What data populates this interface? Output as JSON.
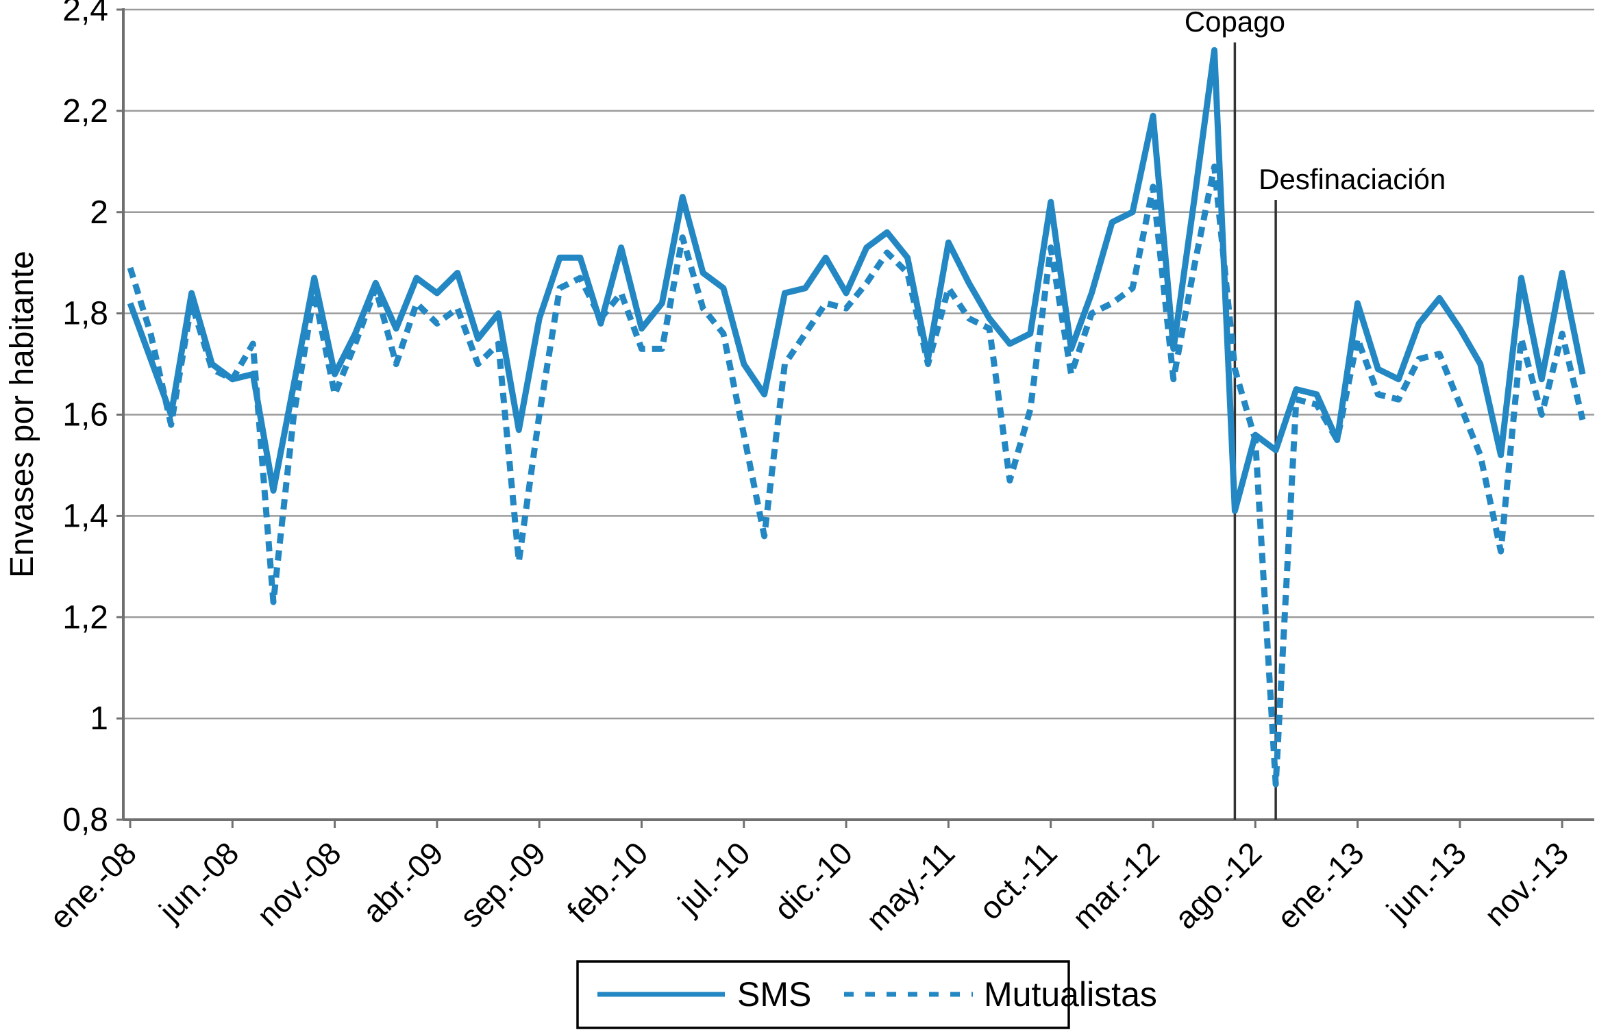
{
  "chart_data": {
    "type": "line",
    "title": "",
    "ylabel": "Envases por habitante",
    "xlabel": "",
    "x_start": "ene.-08",
    "x_end": "dic.-13",
    "x_frequency": "monthly",
    "n_points": 72,
    "ylim": [
      0.8,
      2.4
    ],
    "grid": "horizontal",
    "legend_position": "bottom-center",
    "yticks": [
      {
        "value": 0.8,
        "label": "0,8"
      },
      {
        "value": 1.0,
        "label": "1"
      },
      {
        "value": 1.2,
        "label": "1,2"
      },
      {
        "value": 1.4,
        "label": "1,4"
      },
      {
        "value": 1.6,
        "label": "1,6"
      },
      {
        "value": 1.8,
        "label": "1,8"
      },
      {
        "value": 2.0,
        "label": "2"
      },
      {
        "value": 2.2,
        "label": "2,2"
      },
      {
        "value": 2.4,
        "label": "2,4"
      }
    ],
    "xticks": [
      {
        "index": 0,
        "label": "ene.-08"
      },
      {
        "index": 5,
        "label": "jun.-08"
      },
      {
        "index": 10,
        "label": "nov.-08"
      },
      {
        "index": 15,
        "label": "abr.-09"
      },
      {
        "index": 20,
        "label": "sep.-09"
      },
      {
        "index": 25,
        "label": "feb.-10"
      },
      {
        "index": 30,
        "label": "jul.-10"
      },
      {
        "index": 35,
        "label": "dic.-10"
      },
      {
        "index": 40,
        "label": "may.-11"
      },
      {
        "index": 45,
        "label": "oct.-11"
      },
      {
        "index": 50,
        "label": "mar.-12"
      },
      {
        "index": 55,
        "label": "ago.-12"
      },
      {
        "index": 60,
        "label": "ene.-13"
      },
      {
        "index": 65,
        "label": "jun.-13"
      },
      {
        "index": 70,
        "label": "nov.-13"
      }
    ],
    "annotations": [
      {
        "label": "Copago",
        "index": 54,
        "line_top_y": 62,
        "label_x_offset": 0,
        "anchor": "middle"
      },
      {
        "label": "Desfinaciación",
        "index": 56,
        "line_top_y": 292,
        "label_x_offset": -25,
        "anchor": "start"
      }
    ],
    "series": [
      {
        "name": "SMS",
        "line_style": "solid",
        "values": [
          1.82,
          1.71,
          1.6,
          1.84,
          1.7,
          1.67,
          1.68,
          1.45,
          1.66,
          1.87,
          1.68,
          1.76,
          1.86,
          1.77,
          1.87,
          1.84,
          1.88,
          1.75,
          1.8,
          1.57,
          1.79,
          1.91,
          1.91,
          1.78,
          1.93,
          1.77,
          1.82,
          2.03,
          1.88,
          1.85,
          1.7,
          1.64,
          1.84,
          1.85,
          1.91,
          1.84,
          1.93,
          1.96,
          1.91,
          1.71,
          1.94,
          1.86,
          1.79,
          1.74,
          1.76,
          2.02,
          1.73,
          1.84,
          1.98,
          2.0,
          2.19,
          1.73,
          2.02,
          2.32,
          1.41,
          1.56,
          1.53,
          1.65,
          1.64,
          1.55,
          1.82,
          1.69,
          1.67,
          1.78,
          1.83,
          1.77,
          1.7,
          1.52,
          1.87,
          1.67,
          1.88,
          1.68
        ]
      },
      {
        "name": "Mutualistas",
        "line_style": "dashed",
        "values": [
          1.89,
          1.76,
          1.58,
          1.82,
          1.69,
          1.67,
          1.74,
          1.23,
          1.6,
          1.84,
          1.64,
          1.74,
          1.85,
          1.7,
          1.82,
          1.78,
          1.81,
          1.7,
          1.74,
          1.31,
          1.6,
          1.85,
          1.87,
          1.79,
          1.84,
          1.73,
          1.73,
          1.95,
          1.81,
          1.76,
          1.56,
          1.36,
          1.7,
          1.76,
          1.82,
          1.81,
          1.86,
          1.92,
          1.88,
          1.7,
          1.85,
          1.79,
          1.77,
          1.47,
          1.61,
          1.93,
          1.68,
          1.8,
          1.82,
          1.85,
          2.05,
          1.67,
          1.89,
          2.09,
          1.69,
          1.55,
          0.87,
          1.63,
          1.62,
          1.55,
          1.75,
          1.64,
          1.63,
          1.71,
          1.72,
          1.62,
          1.52,
          1.33,
          1.75,
          1.6,
          1.76,
          1.59
        ]
      }
    ],
    "colors": {
      "line": "#2287c3",
      "grid": "#9b9b9b",
      "axis": "#707070",
      "event_line": "#333333",
      "text": "#000000",
      "background": "#ffffff"
    }
  }
}
